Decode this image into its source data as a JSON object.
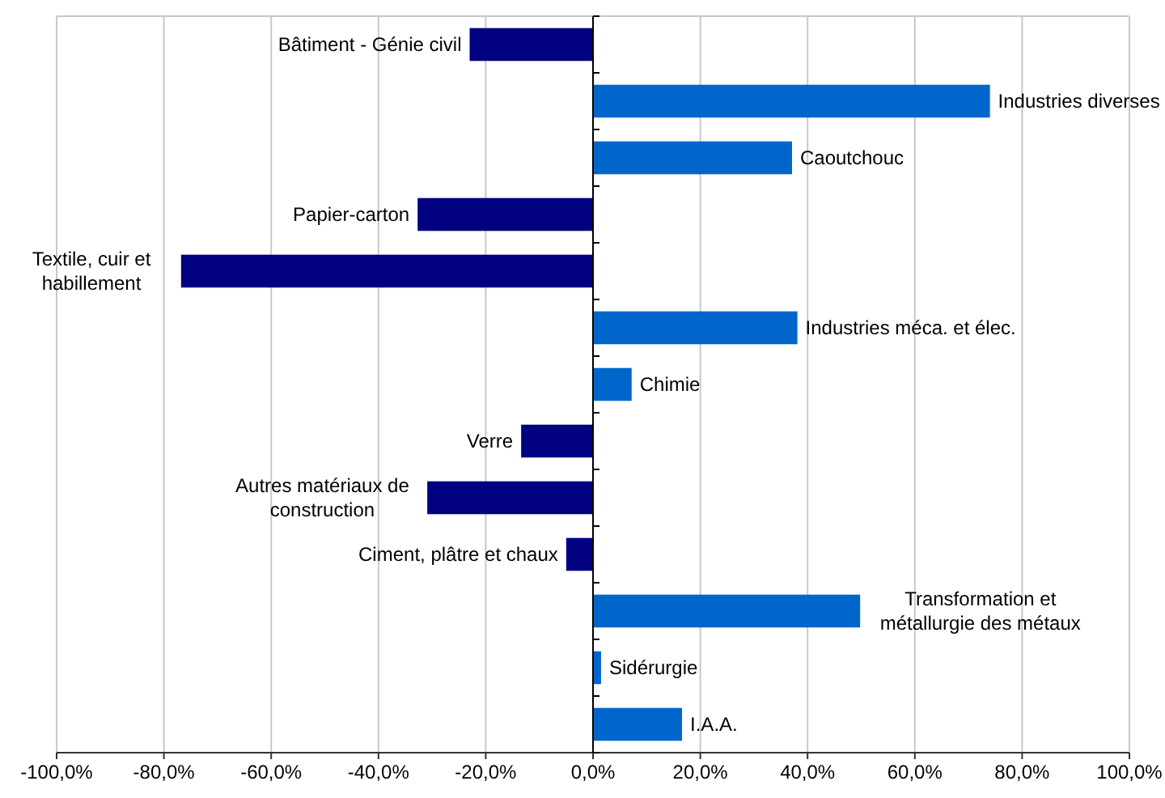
{
  "chart_data": {
    "type": "bar",
    "orientation": "horizontal",
    "categories": [
      "Bâtiment - Génie civil",
      "Industries diverses",
      "Caoutchouc",
      "Papier-carton",
      "Textile, cuir et habillement",
      "Industries méca. et élec.",
      "Chimie",
      "Verre",
      "Autres matériaux de construction",
      "Ciment, plâtre et chaux",
      "Transformation et métallurgie des métaux",
      "Sidérurgie",
      "I.A.A."
    ],
    "values": [
      -23.0,
      74.0,
      37.1,
      -32.7,
      -76.8,
      38.1,
      7.2,
      -13.4,
      -30.9,
      -5.0,
      49.8,
      1.5,
      16.6
    ],
    "colors": [
      "#000080",
      "#0066cc",
      "#0066cc",
      "#000080",
      "#000080",
      "#0066cc",
      "#0066cc",
      "#000080",
      "#000080",
      "#000080",
      "#0066cc",
      "#0066cc",
      "#0066cc"
    ],
    "xlim": [
      -100,
      100
    ],
    "xticks": [
      {
        "value": -100,
        "label": "-100,0%"
      },
      {
        "value": -80,
        "label": "-80,0%"
      },
      {
        "value": -60,
        "label": "-60,0%"
      },
      {
        "value": -40,
        "label": "-40,0%"
      },
      {
        "value": -20,
        "label": "-20,0%"
      },
      {
        "value": 0,
        "label": "0,0%"
      },
      {
        "value": 20,
        "label": "20,0%"
      },
      {
        "value": 40,
        "label": "40,0%"
      },
      {
        "value": 60,
        "label": "60,0%"
      },
      {
        "value": 80,
        "label": "80,0%"
      },
      {
        "value": 100,
        "label": "100,0%"
      }
    ],
    "grid": "x"
  }
}
